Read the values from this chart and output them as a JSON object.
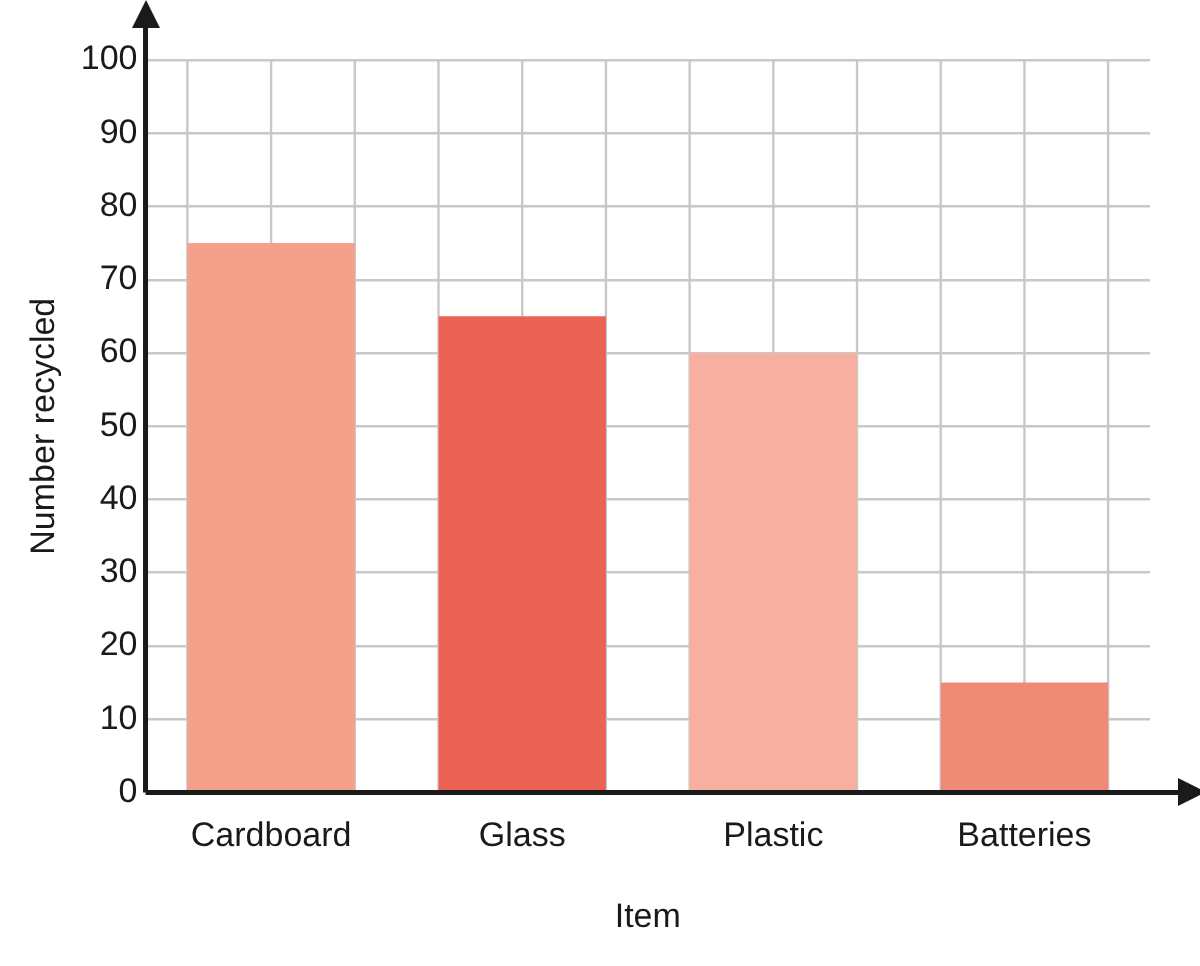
{
  "chart_data": {
    "type": "bar",
    "xlabel": "Item",
    "ylabel": "Number recycled",
    "categories": [
      "Cardboard",
      "Glass",
      "Plastic",
      "Batteries"
    ],
    "values": [
      75,
      65,
      60,
      15
    ],
    "colors": [
      "#f4a08a",
      "#ec6356",
      "#f7b0a0",
      "#ef8a77"
    ],
    "ylim": [
      0,
      100
    ],
    "yticks": [
      0,
      10,
      20,
      30,
      40,
      50,
      60,
      70,
      80,
      90,
      100
    ],
    "grid": true,
    "legend": false
  }
}
